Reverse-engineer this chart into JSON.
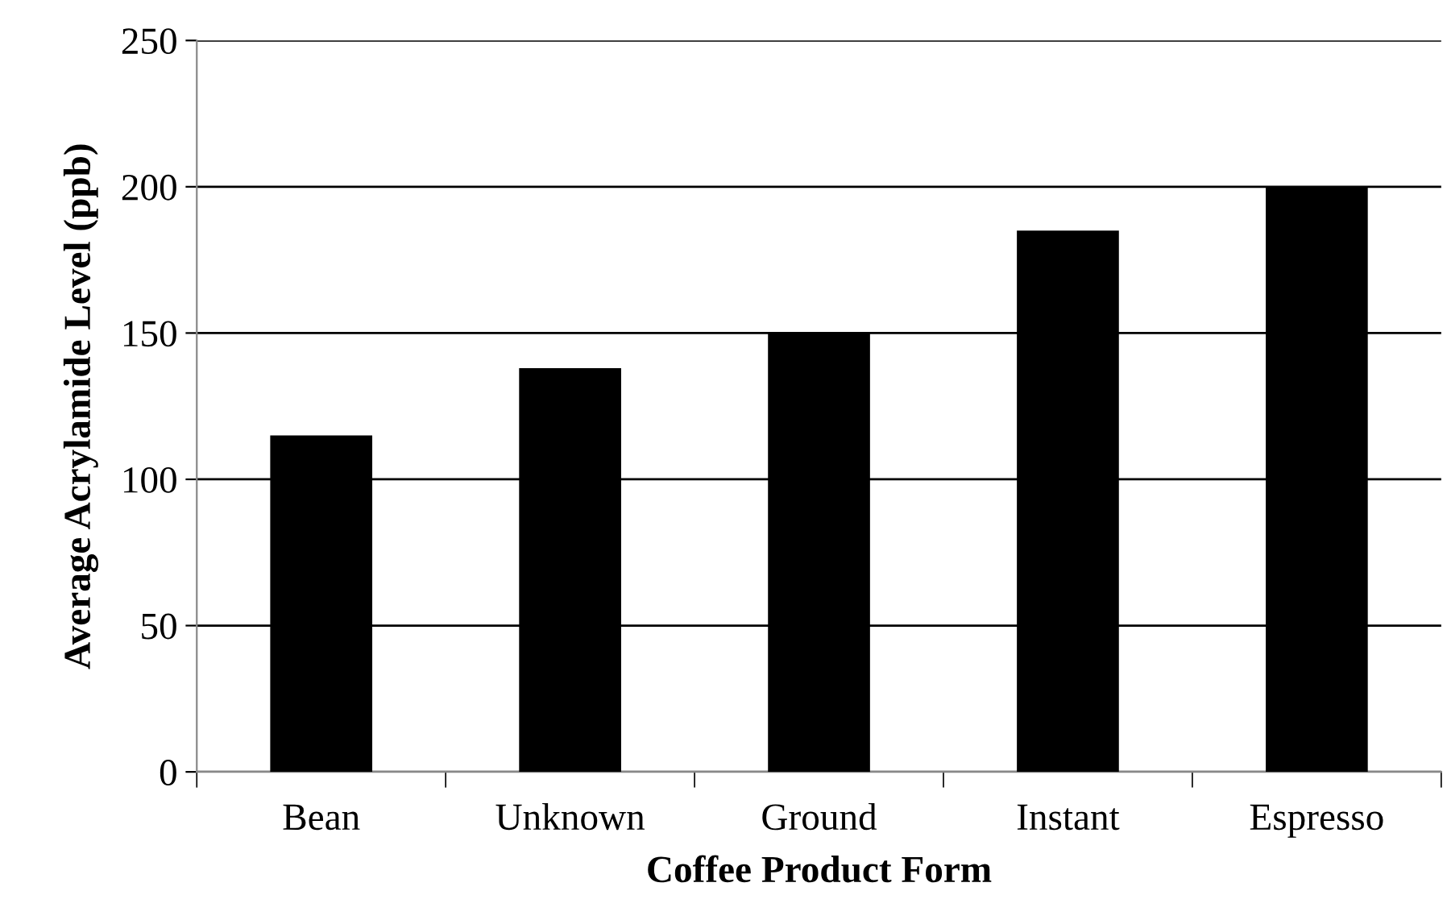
{
  "chart_data": {
    "type": "bar",
    "xlabel": "Coffee Product Form",
    "ylabel": "Average Acrylamide Level (ppb)",
    "categories": [
      "Bean",
      "Unknown",
      "Ground",
      "Instant",
      "Espresso"
    ],
    "values": [
      115,
      138,
      150,
      185,
      200
    ],
    "color": "#000000",
    "ylim": [
      0,
      250
    ],
    "yticks": [
      0,
      50,
      100,
      150,
      200,
      250
    ],
    "grid": "y",
    "legend": false
  }
}
